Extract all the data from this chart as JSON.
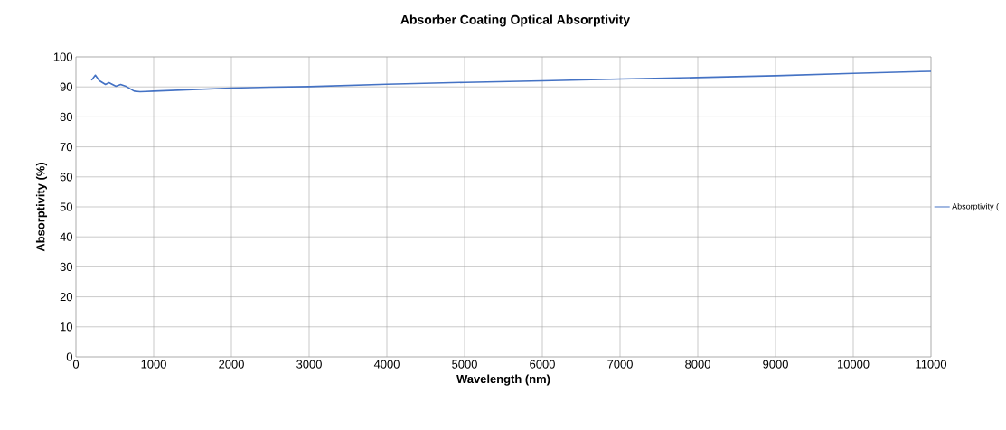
{
  "chart_data": {
    "type": "line",
    "title": "Absorber Coating Optical Absorptivity",
    "xlabel": "Wavelength (nm)",
    "ylabel": "Absorptivity  (%)",
    "x": [
      200,
      250,
      300,
      380,
      425,
      515,
      575,
      650,
      750,
      825,
      900,
      1000,
      1500,
      2000,
      2500,
      3000,
      4000,
      5000,
      6000,
      7000,
      8000,
      9000,
      10000,
      11000
    ],
    "series": [
      {
        "name": "Absorptivity (",
        "color": "#4472c4",
        "values": [
          92.2,
          93.9,
          92.1,
          90.8,
          91.4,
          90.2,
          90.8,
          90.1,
          88.6,
          88.4,
          88.5,
          88.6,
          89.1,
          89.6,
          89.9,
          90.1,
          90.9,
          91.5,
          92.0,
          92.6,
          93.1,
          93.7,
          94.5,
          95.2
        ]
      }
    ],
    "xlim": [
      0,
      11000
    ],
    "xticks": [
      0,
      1000,
      2000,
      3000,
      4000,
      5000,
      6000,
      7000,
      8000,
      9000,
      10000,
      11000
    ],
    "ylim": [
      0,
      100
    ],
    "yticks": [
      0,
      10,
      20,
      30,
      40,
      50,
      60,
      70,
      80,
      90,
      100
    ],
    "grid": true,
    "legend": "right",
    "marker": "none",
    "line_style": "solid"
  }
}
